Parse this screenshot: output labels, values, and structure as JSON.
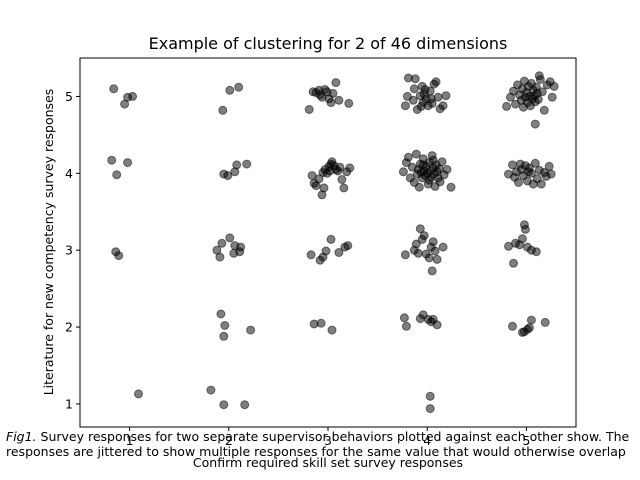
{
  "chart_data": {
    "type": "scatter",
    "title": "Example of clustering for 2 of 46 dimensions",
    "xlabel": "Confirm required skill set survey responses",
    "ylabel": "Literature for new competency survey responses",
    "xlim": [
      0.5,
      5.5
    ],
    "ylim": [
      0.7,
      5.5
    ],
    "x_ticks": [
      1,
      2,
      3,
      4,
      5
    ],
    "y_ticks": [
      1,
      2,
      3,
      4,
      5
    ],
    "grid": false,
    "marker_color": "#000000",
    "marker_alpha": 0.5,
    "points": [
      [
        0.84,
        5.1
      ],
      [
        0.95,
        4.9
      ],
      [
        0.98,
        4.99
      ],
      [
        1.03,
        5.0
      ],
      [
        0.82,
        4.17
      ],
      [
        0.87,
        3.98
      ],
      [
        0.98,
        4.14
      ],
      [
        0.86,
        2.98
      ],
      [
        0.89,
        2.93
      ],
      [
        1.09,
        1.13
      ],
      [
        1.94,
        4.82
      ],
      [
        2.01,
        5.08
      ],
      [
        2.1,
        5.12
      ],
      [
        1.95,
        3.99
      ],
      [
        1.99,
        3.97
      ],
      [
        2.06,
        4.02
      ],
      [
        2.08,
        4.11
      ],
      [
        2.18,
        4.12
      ],
      [
        1.88,
        3.0
      ],
      [
        1.91,
        2.91
      ],
      [
        1.93,
        3.09
      ],
      [
        2.01,
        3.16
      ],
      [
        2.05,
        2.96
      ],
      [
        2.06,
        3.06
      ],
      [
        2.11,
        2.98
      ],
      [
        2.12,
        3.04
      ],
      [
        1.92,
        2.17
      ],
      [
        1.96,
        2.02
      ],
      [
        1.95,
        1.88
      ],
      [
        2.22,
        1.96
      ],
      [
        1.82,
        1.18
      ],
      [
        1.95,
        0.99
      ],
      [
        2.16,
        0.99
      ],
      [
        2.81,
        4.83
      ],
      [
        2.85,
        5.06
      ],
      [
        2.88,
        5.05
      ],
      [
        2.92,
        5.02
      ],
      [
        2.94,
        4.99
      ],
      [
        2.97,
        5.09
      ],
      [
        3.01,
        4.97
      ],
      [
        3.03,
        4.92
      ],
      [
        3.05,
        5.04
      ],
      [
        3.08,
        5.18
      ],
      [
        3.11,
        4.95
      ],
      [
        3.21,
        4.91
      ],
      [
        2.99,
        5.06
      ],
      [
        2.91,
        5.08
      ],
      [
        2.84,
        3.97
      ],
      [
        2.86,
        3.87
      ],
      [
        2.88,
        3.84
      ],
      [
        2.91,
        3.93
      ],
      [
        2.94,
        3.72
      ],
      [
        2.95,
        4.01
      ],
      [
        2.97,
        4.05
      ],
      [
        2.99,
        4.0
      ],
      [
        3.01,
        4.09
      ],
      [
        3.03,
        4.12
      ],
      [
        3.04,
        4.15
      ],
      [
        3.06,
        4.1
      ],
      [
        3.08,
        4.05
      ],
      [
        3.1,
        4.03
      ],
      [
        3.12,
        4.08
      ],
      [
        3.14,
        3.92
      ],
      [
        3.16,
        3.81
      ],
      [
        3.19,
        4.02
      ],
      [
        3.22,
        4.07
      ],
      [
        2.96,
        3.81
      ],
      [
        3.02,
        4.03
      ],
      [
        2.83,
        2.94
      ],
      [
        2.92,
        2.87
      ],
      [
        2.95,
        2.91
      ],
      [
        2.98,
        2.99
      ],
      [
        3.03,
        3.14
      ],
      [
        3.11,
        2.97
      ],
      [
        3.17,
        3.04
      ],
      [
        3.2,
        3.06
      ],
      [
        2.86,
        2.04
      ],
      [
        2.93,
        2.05
      ],
      [
        3.04,
        1.96
      ],
      [
        3.78,
        4.88
      ],
      [
        3.8,
        5.0
      ],
      [
        3.81,
        5.24
      ],
      [
        3.86,
        4.95
      ],
      [
        3.87,
        5.1
      ],
      [
        3.88,
        5.23
      ],
      [
        3.9,
        4.83
      ],
      [
        3.93,
        5.01
      ],
      [
        3.95,
        5.13
      ],
      [
        3.96,
        4.92
      ],
      [
        3.97,
        5.03
      ],
      [
        3.99,
        4.97
      ],
      [
        4.01,
        4.88
      ],
      [
        4.03,
        5.07
      ],
      [
        4.05,
        4.91
      ],
      [
        4.07,
        5.16
      ],
      [
        4.09,
        5.19
      ],
      [
        4.11,
        4.99
      ],
      [
        4.13,
        4.84
      ],
      [
        4.16,
        4.88
      ],
      [
        4.19,
        5.01
      ],
      [
        3.98,
        5.09
      ],
      [
        4.04,
        4.97
      ],
      [
        3.94,
        4.87
      ],
      [
        3.76,
        4.02
      ],
      [
        3.79,
        4.14
      ],
      [
        3.81,
        4.21
      ],
      [
        3.83,
        3.94
      ],
      [
        3.85,
        4.08
      ],
      [
        3.87,
        3.88
      ],
      [
        3.89,
        4.25
      ],
      [
        3.9,
        3.99
      ],
      [
        3.91,
        4.05
      ],
      [
        3.92,
        3.82
      ],
      [
        3.93,
        4.12
      ],
      [
        3.94,
        4.01
      ],
      [
        3.95,
        3.94
      ],
      [
        3.96,
        4.19
      ],
      [
        3.97,
        4.03
      ],
      [
        3.98,
        3.97
      ],
      [
        3.99,
        4.09
      ],
      [
        4.0,
        4.0
      ],
      [
        4.01,
        3.86
      ],
      [
        4.02,
        4.14
      ],
      [
        4.03,
        4.03
      ],
      [
        4.04,
        3.95
      ],
      [
        4.05,
        4.23
      ],
      [
        4.06,
        4.07
      ],
      [
        4.07,
        3.99
      ],
      [
        4.08,
        3.83
      ],
      [
        4.09,
        4.11
      ],
      [
        4.1,
        4.02
      ],
      [
        4.11,
        3.94
      ],
      [
        4.12,
        4.06
      ],
      [
        4.13,
        3.89
      ],
      [
        4.15,
        4.15
      ],
      [
        4.17,
        3.98
      ],
      [
        4.2,
        4.05
      ],
      [
        4.24,
        3.82
      ],
      [
        3.96,
        4.11
      ],
      [
        4.02,
        3.91
      ],
      [
        4.06,
        4.17
      ],
      [
        3.78,
        2.94
      ],
      [
        3.87,
        3.0
      ],
      [
        3.89,
        3.08
      ],
      [
        3.93,
        3.28
      ],
      [
        3.95,
        3.14
      ],
      [
        3.97,
        3.19
      ],
      [
        3.99,
        2.95
      ],
      [
        4.02,
        2.9
      ],
      [
        4.04,
        3.04
      ],
      [
        4.06,
        3.11
      ],
      [
        4.08,
        2.99
      ],
      [
        4.1,
        2.88
      ],
      [
        4.05,
        2.73
      ],
      [
        4.16,
        3.04
      ],
      [
        3.91,
        2.96
      ],
      [
        3.77,
        2.12
      ],
      [
        3.79,
        2.01
      ],
      [
        3.93,
        2.11
      ],
      [
        3.96,
        2.16
      ],
      [
        4.01,
        2.1
      ],
      [
        4.04,
        2.07
      ],
      [
        4.06,
        2.1
      ],
      [
        4.1,
        2.03
      ],
      [
        4.03,
        1.1
      ],
      [
        4.03,
        0.94
      ],
      [
        4.8,
        4.87
      ],
      [
        4.84,
        4.99
      ],
      [
        4.87,
        5.07
      ],
      [
        4.89,
        4.9
      ],
      [
        4.91,
        5.15
      ],
      [
        4.93,
        5.02
      ],
      [
        4.95,
        4.95
      ],
      [
        4.96,
        5.1
      ],
      [
        4.97,
        4.86
      ],
      [
        4.98,
        5.2
      ],
      [
        4.99,
        4.99
      ],
      [
        5.0,
        5.05
      ],
      [
        5.01,
        4.92
      ],
      [
        5.02,
        5.13
      ],
      [
        5.03,
        5.0
      ],
      [
        5.04,
        4.88
      ],
      [
        5.05,
        5.17
      ],
      [
        5.06,
        4.97
      ],
      [
        5.07,
        5.08
      ],
      [
        5.08,
        5.01
      ],
      [
        5.09,
        4.93
      ],
      [
        5.1,
        5.12
      ],
      [
        5.11,
        5.04
      ],
      [
        5.12,
        4.96
      ],
      [
        5.14,
        5.22
      ],
      [
        5.16,
        5.06
      ],
      [
        5.18,
        4.82
      ],
      [
        5.21,
        5.15
      ],
      [
        5.24,
        5.19
      ],
      [
        5.26,
        4.99
      ],
      [
        5.28,
        5.13
      ],
      [
        5.13,
        5.27
      ],
      [
        5.09,
        4.64
      ],
      [
        4.82,
        3.99
      ],
      [
        4.86,
        4.11
      ],
      [
        4.88,
        3.95
      ],
      [
        4.9,
        4.02
      ],
      [
        4.92,
        3.88
      ],
      [
        4.94,
        4.12
      ],
      [
        4.95,
        4.05
      ],
      [
        4.97,
        3.97
      ],
      [
        4.99,
        4.1
      ],
      [
        5.01,
        3.9
      ],
      [
        5.03,
        4.07
      ],
      [
        5.05,
        4.0
      ],
      [
        5.07,
        3.86
      ],
      [
        5.09,
        4.13
      ],
      [
        5.11,
        3.93
      ],
      [
        5.13,
        4.04
      ],
      [
        5.15,
        3.86
      ],
      [
        5.18,
        4.01
      ],
      [
        5.2,
        3.96
      ],
      [
        5.23,
        4.09
      ],
      [
        5.25,
        3.99
      ],
      [
        5.02,
        4.02
      ],
      [
        4.82,
        3.05
      ],
      [
        4.89,
        3.09
      ],
      [
        4.93,
        3.07
      ],
      [
        4.96,
        3.15
      ],
      [
        4.98,
        3.33
      ],
      [
        4.99,
        3.27
      ],
      [
        5.01,
        3.04
      ],
      [
        5.05,
        3.0
      ],
      [
        5.1,
        2.98
      ],
      [
        4.87,
        2.83
      ],
      [
        4.86,
        2.01
      ],
      [
        4.96,
        1.93
      ],
      [
        4.98,
        1.94
      ],
      [
        5.01,
        1.97
      ],
      [
        5.03,
        1.99
      ],
      [
        5.05,
        2.09
      ],
      [
        5.19,
        2.06
      ]
    ]
  },
  "caption": {
    "fig_label": "Fig1.",
    "text": " Survey responses for two separate supervisor behaviors plotted against each other show. The responses are jittered to show multiple responses for the same value that would otherwise overlap"
  }
}
